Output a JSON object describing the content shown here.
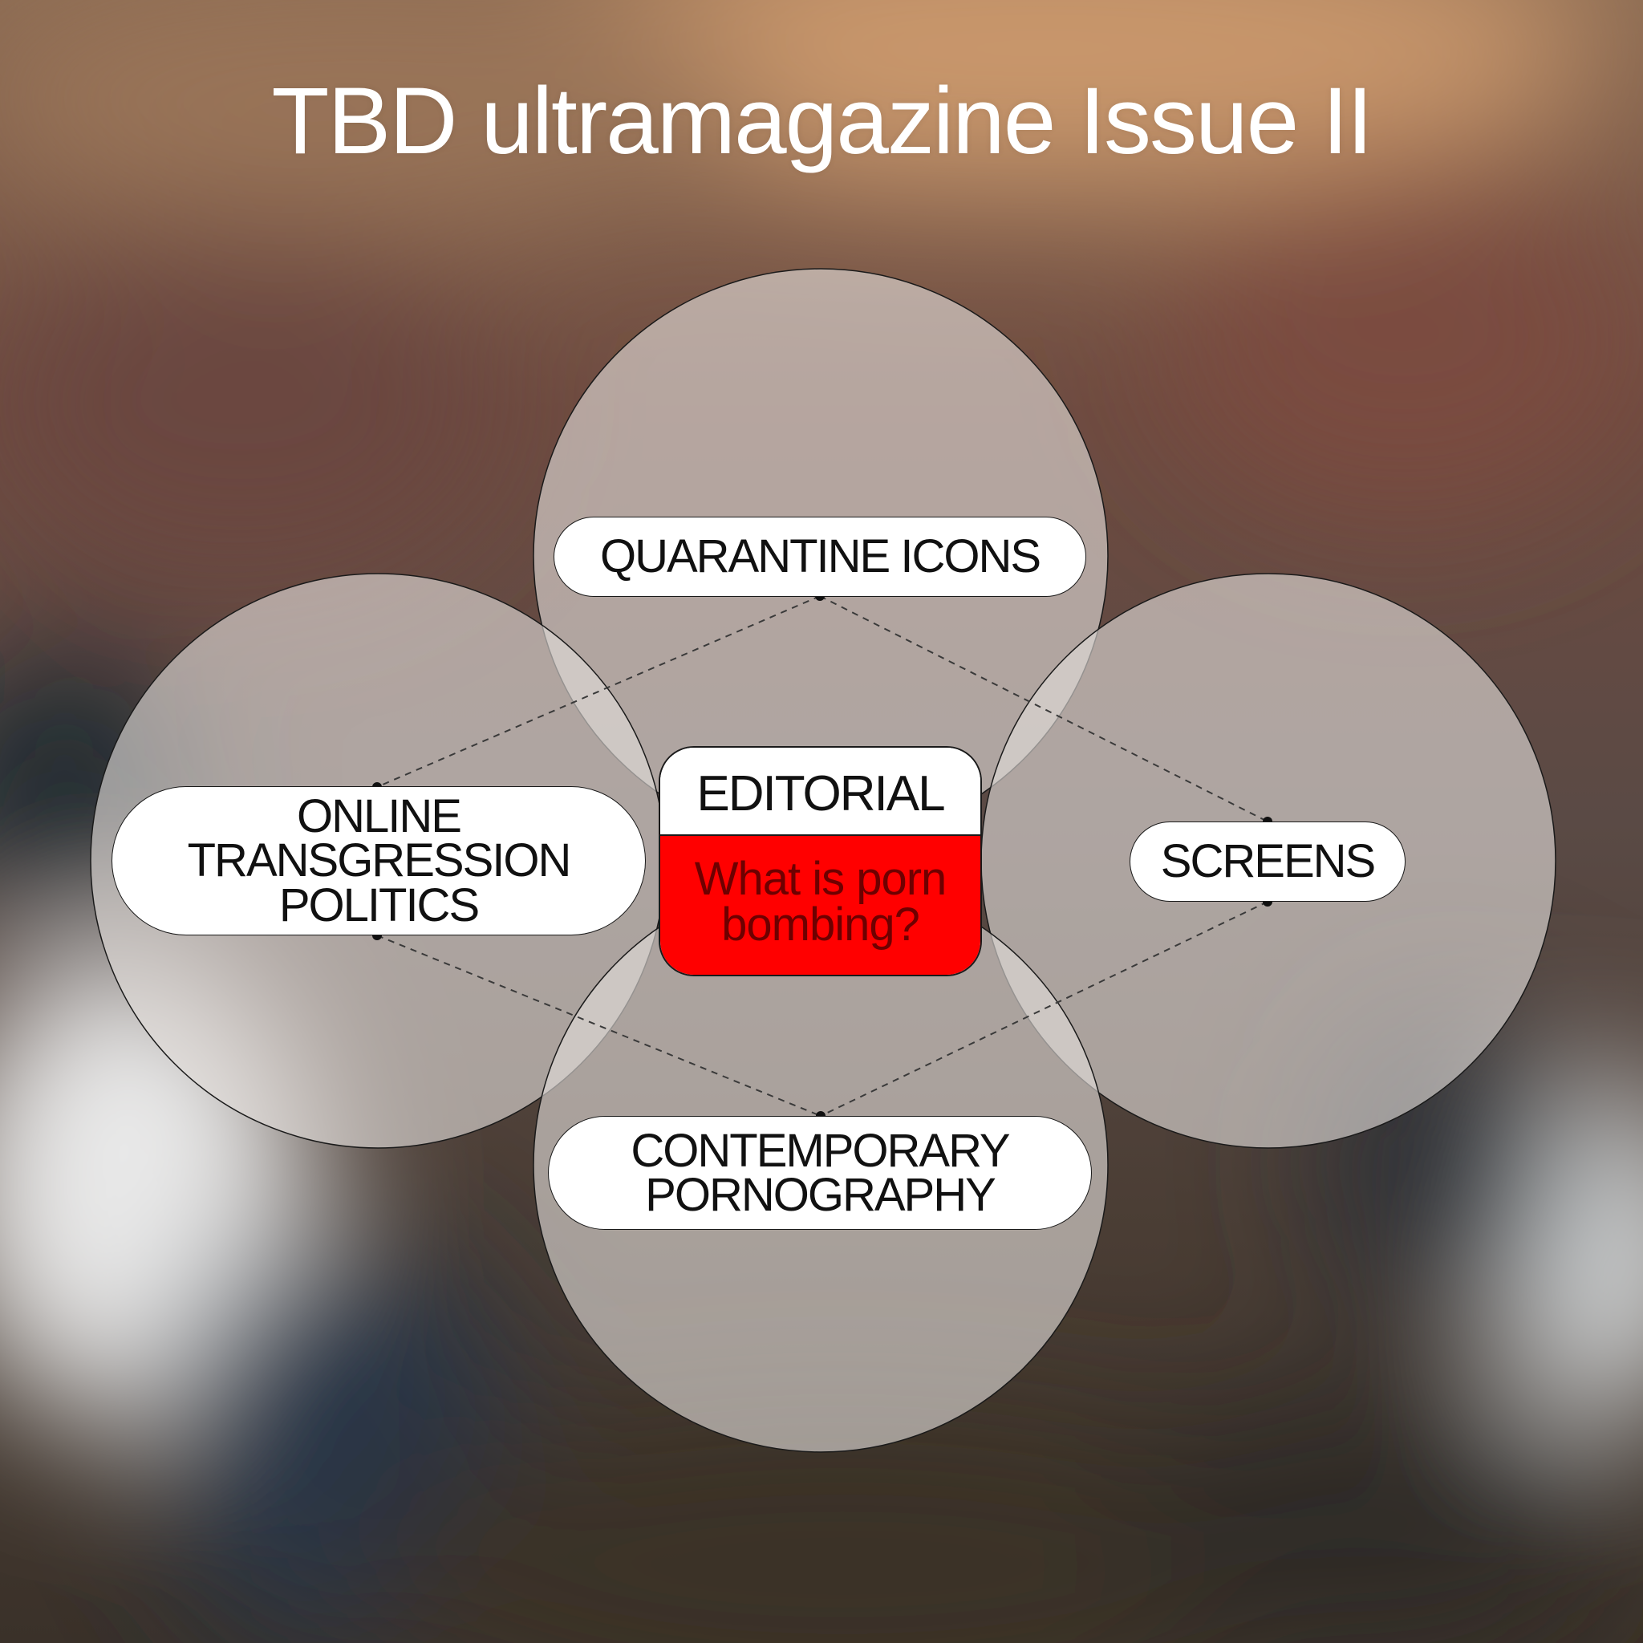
{
  "title": "TBD ultramagazine Issue II",
  "colors": {
    "circle_fill": "#d9d3cf",
    "pill_fill": "#ffffff",
    "outline": "#1a1a1a",
    "editorial_red": "#ff0000",
    "editorial_text": "#6e0000",
    "title_text": "#ffffff"
  },
  "nodes": {
    "top": "QUARANTINE ICONS",
    "left": "ONLINE\nTRANSGRESSION\nPOLITICS",
    "right": "SCREENS",
    "bottom": "CONTEMPORARY\nPORNOGRAPHY"
  },
  "editorial": {
    "heading": "EDITORIAL",
    "question": "What is porn\nbombing?"
  }
}
